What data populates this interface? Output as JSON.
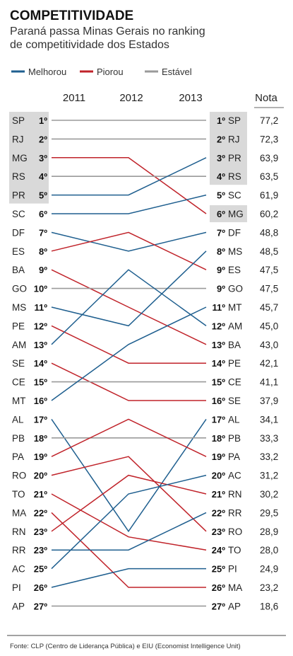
{
  "title": "COMPETITIVIDADE",
  "subtitle": [
    "Paraná passa Minas Gerais no ranking",
    "de competitividade dos Estados"
  ],
  "legend": [
    {
      "label": "Melhorou",
      "color": "#1f5f8f"
    },
    {
      "label": "Piorou",
      "color": "#c0232a"
    },
    {
      "label": "Estável",
      "color": "#9a9a9a"
    }
  ],
  "years": [
    "2011",
    "2012",
    "2013"
  ],
  "nota_label": "Nota",
  "source": "Fonte: CLP (Centro de Liderança Pública) e EIU (Economist Intelligence Unit)",
  "chart_data": {
    "type": "line",
    "title": "COMPETITIVIDADE",
    "x": [
      "2011",
      "2012",
      "2013"
    ],
    "left_column": [
      {
        "state": "SP",
        "rank": "1º",
        "shaded": true
      },
      {
        "state": "RJ",
        "rank": "2º",
        "shaded": true
      },
      {
        "state": "MG",
        "rank": "3º",
        "shaded": true
      },
      {
        "state": "RS",
        "rank": "4º",
        "shaded": true
      },
      {
        "state": "PR",
        "rank": "5º",
        "shaded": true
      },
      {
        "state": "SC",
        "rank": "6º",
        "shaded": false
      },
      {
        "state": "DF",
        "rank": "7º",
        "shaded": false
      },
      {
        "state": "ES",
        "rank": "8º",
        "shaded": false
      },
      {
        "state": "BA",
        "rank": "9º",
        "shaded": false
      },
      {
        "state": "GO",
        "rank": "10º",
        "shaded": false
      },
      {
        "state": "MS",
        "rank": "11º",
        "shaded": false
      },
      {
        "state": "PE",
        "rank": "12º",
        "shaded": false
      },
      {
        "state": "AM",
        "rank": "13º",
        "shaded": false
      },
      {
        "state": "SE",
        "rank": "14º",
        "shaded": false
      },
      {
        "state": "CE",
        "rank": "15º",
        "shaded": false
      },
      {
        "state": "MT",
        "rank": "16º",
        "shaded": false
      },
      {
        "state": "AL",
        "rank": "17º",
        "shaded": false
      },
      {
        "state": "PB",
        "rank": "18º",
        "shaded": false
      },
      {
        "state": "PA",
        "rank": "19º",
        "shaded": false
      },
      {
        "state": "RO",
        "rank": "20º",
        "shaded": false
      },
      {
        "state": "TO",
        "rank": "21º",
        "shaded": false
      },
      {
        "state": "MA",
        "rank": "22º",
        "shaded": false
      },
      {
        "state": "RN",
        "rank": "23º",
        "shaded": false
      },
      {
        "state": "RR",
        "rank": "23º",
        "shaded": false
      },
      {
        "state": "AC",
        "rank": "25º",
        "shaded": false
      },
      {
        "state": "PI",
        "rank": "26º",
        "shaded": false
      },
      {
        "state": "AP",
        "rank": "27º",
        "shaded": false
      }
    ],
    "right_column": [
      {
        "state": "SP",
        "rank": "1º",
        "score": "77,2",
        "shaded": true
      },
      {
        "state": "RJ",
        "rank": "2º",
        "score": "72,3",
        "shaded": true
      },
      {
        "state": "PR",
        "rank": "3º",
        "score": "63,9",
        "shaded": true
      },
      {
        "state": "RS",
        "rank": "4º",
        "score": "63,5",
        "shaded": true
      },
      {
        "state": "SC",
        "rank": "5º",
        "score": "61,9",
        "shaded": false
      },
      {
        "state": "MG",
        "rank": "6º",
        "score": "60,2",
        "shaded": true
      },
      {
        "state": "DF",
        "rank": "7º",
        "score": "48,8",
        "shaded": false
      },
      {
        "state": "MS",
        "rank": "8º",
        "score": "48,5",
        "shaded": false
      },
      {
        "state": "ES",
        "rank": "9º",
        "score": "47,5",
        "shaded": false
      },
      {
        "state": "GO",
        "rank": "9º",
        "score": "47,5",
        "shaded": false
      },
      {
        "state": "MT",
        "rank": "11º",
        "score": "45,7",
        "shaded": false
      },
      {
        "state": "AM",
        "rank": "12º",
        "score": "45,0",
        "shaded": false
      },
      {
        "state": "BA",
        "rank": "13º",
        "score": "43,0",
        "shaded": false
      },
      {
        "state": "PE",
        "rank": "14º",
        "score": "42,1",
        "shaded": false
      },
      {
        "state": "CE",
        "rank": "15º",
        "score": "41,1",
        "shaded": false
      },
      {
        "state": "SE",
        "rank": "16º",
        "score": "37,9",
        "shaded": false
      },
      {
        "state": "AL",
        "rank": "17º",
        "score": "34,1",
        "shaded": false
      },
      {
        "state": "PB",
        "rank": "18º",
        "score": "33,3",
        "shaded": false
      },
      {
        "state": "PA",
        "rank": "19º",
        "score": "33,2",
        "shaded": false
      },
      {
        "state": "AC",
        "rank": "20º",
        "score": "31,2",
        "shaded": false
      },
      {
        "state": "RN",
        "rank": "21º",
        "score": "30,2",
        "shaded": false
      },
      {
        "state": "RR",
        "rank": "22º",
        "score": "29,5",
        "shaded": false
      },
      {
        "state": "RO",
        "rank": "23º",
        "score": "28,9",
        "shaded": false
      },
      {
        "state": "TO",
        "rank": "24º",
        "score": "28,0",
        "shaded": false
      },
      {
        "state": "PI",
        "rank": "25º",
        "score": "24,9",
        "shaded": false
      },
      {
        "state": "MA",
        "rank": "26º",
        "score": "23,2",
        "shaded": false
      },
      {
        "state": "AP",
        "rank": "27º",
        "score": "18,6",
        "shaded": false
      }
    ],
    "series": [
      {
        "name": "SP",
        "values": [
          1,
          1,
          1
        ],
        "trend": "Estável"
      },
      {
        "name": "RJ",
        "values": [
          2,
          2,
          2
        ],
        "trend": "Estável"
      },
      {
        "name": "MG",
        "values": [
          3,
          3,
          6
        ],
        "trend": "Piorou"
      },
      {
        "name": "RS",
        "values": [
          4,
          4,
          4
        ],
        "trend": "Estável"
      },
      {
        "name": "PR",
        "values": [
          5,
          5,
          3
        ],
        "trend": "Melhorou"
      },
      {
        "name": "SC",
        "values": [
          6,
          6,
          5
        ],
        "trend": "Melhorou"
      },
      {
        "name": "DF",
        "values": [
          7,
          8,
          7
        ],
        "trend": "Melhorou"
      },
      {
        "name": "ES",
        "values": [
          8,
          7,
          9
        ],
        "trend": "Piorou"
      },
      {
        "name": "BA",
        "values": [
          9,
          11,
          13
        ],
        "trend": "Piorou"
      },
      {
        "name": "GO",
        "values": [
          10,
          10,
          10
        ],
        "trend": "Estável"
      },
      {
        "name": "MS",
        "values": [
          11,
          12,
          8
        ],
        "trend": "Melhorou"
      },
      {
        "name": "PE",
        "values": [
          12,
          14,
          14
        ],
        "trend": "Piorou"
      },
      {
        "name": "AM",
        "values": [
          13,
          9,
          12
        ],
        "trend": "Melhorou"
      },
      {
        "name": "SE",
        "values": [
          14,
          16,
          16
        ],
        "trend": "Piorou"
      },
      {
        "name": "CE",
        "values": [
          15,
          15,
          15
        ],
        "trend": "Estável"
      },
      {
        "name": "MT",
        "values": [
          16,
          13,
          11
        ],
        "trend": "Melhorou"
      },
      {
        "name": "AL",
        "values": [
          17,
          23,
          17
        ],
        "trend": "Melhorou"
      },
      {
        "name": "PB",
        "values": [
          18,
          18,
          18
        ],
        "trend": "Estável"
      },
      {
        "name": "PA",
        "values": [
          19,
          17,
          19
        ],
        "trend": "Piorou"
      },
      {
        "name": "RO",
        "values": [
          20,
          19,
          23
        ],
        "trend": "Piorou"
      },
      {
        "name": "TO",
        "values": [
          21,
          23.3,
          24
        ],
        "trend": "Piorou"
      },
      {
        "name": "MA",
        "values": [
          22,
          26,
          26
        ],
        "trend": "Piorou"
      },
      {
        "name": "RN",
        "values": [
          23,
          20,
          21
        ],
        "trend": "Piorou"
      },
      {
        "name": "RR",
        "values": [
          24,
          24,
          22
        ],
        "trend": "Melhorou"
      },
      {
        "name": "AC",
        "values": [
          25,
          21,
          20
        ],
        "trend": "Melhorou"
      },
      {
        "name": "PI",
        "values": [
          26,
          25,
          25
        ],
        "trend": "Melhorou"
      },
      {
        "name": "AP",
        "values": [
          27,
          27,
          27
        ],
        "trend": "Estável"
      }
    ]
  }
}
